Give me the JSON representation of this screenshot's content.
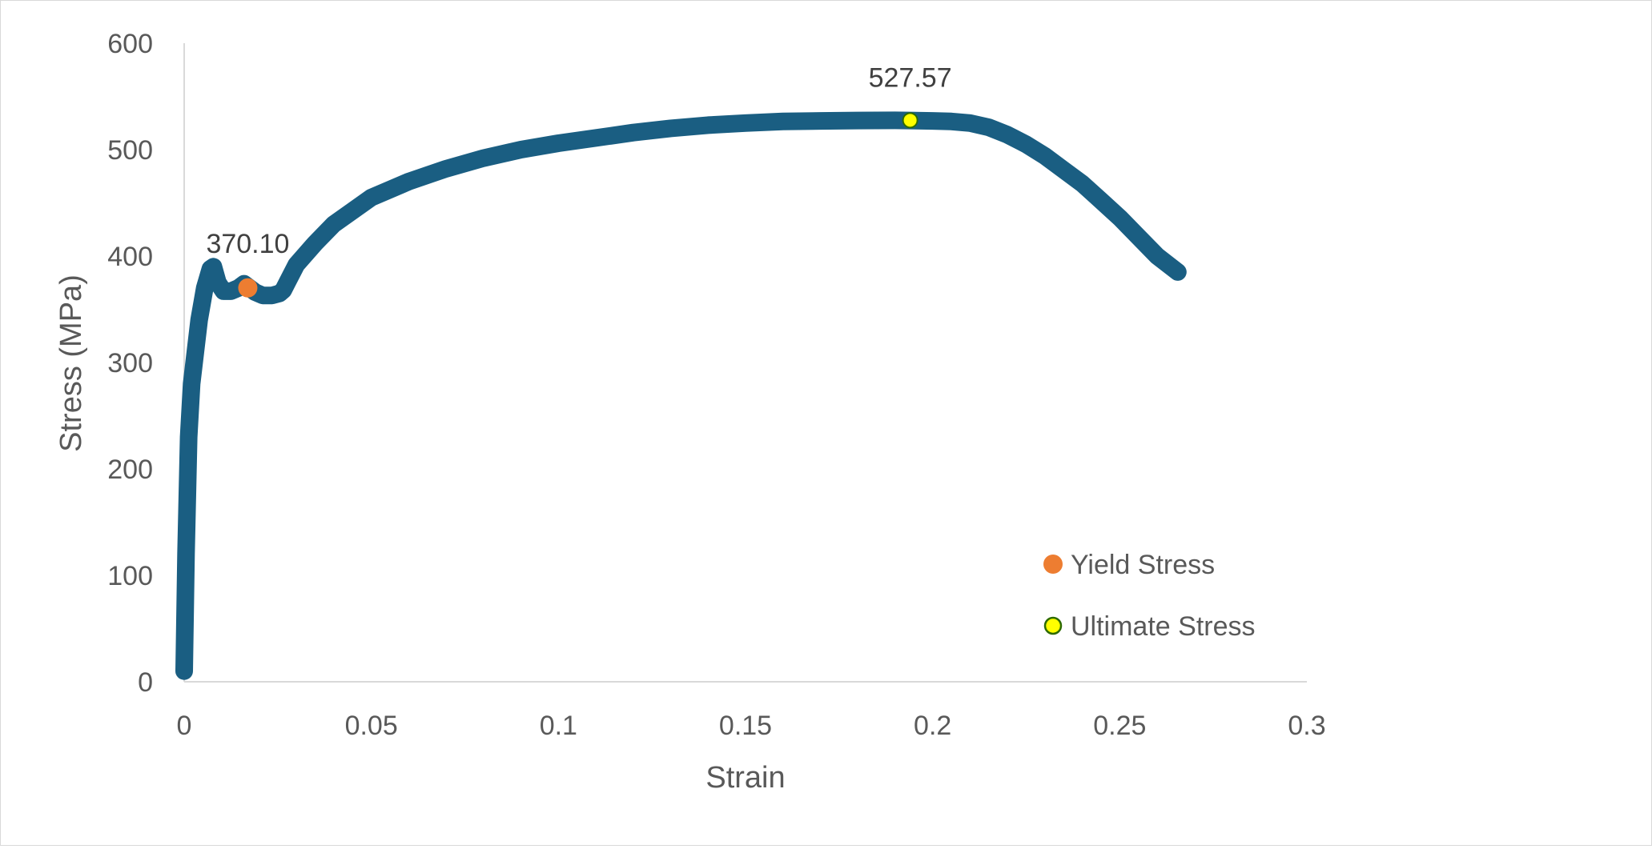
{
  "chart_data": {
    "type": "scatter",
    "title": "",
    "xlabel": "Strain",
    "ylabel": "Stress (MPa)",
    "xlim": [
      0,
      0.3
    ],
    "ylim": [
      0,
      600
    ],
    "x_ticks": [
      "0",
      "0.05",
      "0.1",
      "0.15",
      "0.2",
      "0.25",
      "0.3"
    ],
    "y_ticks": [
      "0",
      "100",
      "200",
      "300",
      "400",
      "500",
      "600"
    ],
    "grid": false,
    "legend_position": "bottom-right",
    "series": [
      {
        "name": "",
        "style": "line",
        "color": "#1a5e82",
        "x": [
          0,
          0.0005,
          0.0012,
          0.002,
          0.003,
          0.004,
          0.0055,
          0.007,
          0.0078,
          0.009,
          0.0105,
          0.0125,
          0.0145,
          0.016,
          0.0175,
          0.019,
          0.021,
          0.0235,
          0.0255,
          0.0265,
          0.0275,
          0.03,
          0.035,
          0.04,
          0.05,
          0.06,
          0.07,
          0.08,
          0.09,
          0.1,
          0.11,
          0.12,
          0.13,
          0.14,
          0.15,
          0.16,
          0.17,
          0.18,
          0.19,
          0.2,
          0.205,
          0.21,
          0.215,
          0.22,
          0.225,
          0.23,
          0.235,
          0.24,
          0.245,
          0.25,
          0.255,
          0.26,
          0.2655
        ],
        "y": [
          10,
          120,
          230,
          280,
          310,
          340,
          370,
          388,
          390,
          375,
          367,
          367,
          370,
          374,
          370,
          366,
          363,
          363,
          365,
          368,
          375,
          392,
          412,
          430,
          455,
          470,
          482,
          492,
          500,
          506,
          511,
          516,
          520,
          523,
          525,
          526.5,
          527,
          527.4,
          527.5,
          527,
          526.5,
          525,
          521,
          514,
          505,
          494,
          481,
          468,
          452,
          436,
          418,
          400,
          385
        ]
      },
      {
        "name": "Yield Stress",
        "style": "marker",
        "color": "#ed7d31",
        "x": [
          0.017
        ],
        "y": [
          370.1
        ],
        "label": "370.10"
      },
      {
        "name": "Ultimate Stress",
        "style": "marker",
        "color": "#ffff00",
        "edge": "#2e6b00",
        "x": [
          0.194
        ],
        "y": [
          527.57
        ],
        "label": "527.57"
      }
    ]
  }
}
